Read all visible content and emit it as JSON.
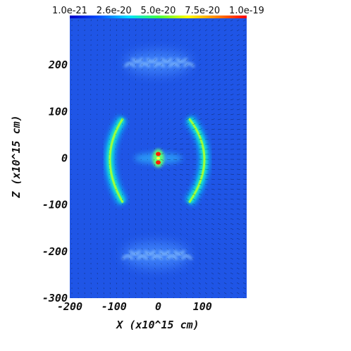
{
  "chart_data": {
    "type": "heatmap",
    "title": "",
    "xlabel": "X (x10^15 cm)",
    "ylabel": "Z (x10^15 cm)",
    "xlim": [
      -200,
      200
    ],
    "ylim": [
      -300,
      300
    ],
    "x_ticks": [
      "-200",
      "-100",
      "0",
      "100"
    ],
    "x_tick_values": [
      -200,
      -100,
      0,
      100
    ],
    "y_ticks": [
      "200",
      "100",
      "0",
      "-100",
      "-200",
      "-300"
    ],
    "y_tick_values": [
      200,
      100,
      0,
      -100,
      -200,
      -300
    ],
    "colorbar": {
      "labels": [
        "1.0e-21",
        "2.6e-20",
        "5.0e-20",
        "7.5e-20",
        "1.0e-19"
      ],
      "values": [
        1e-21,
        2.6e-20,
        5e-20,
        7.5e-20,
        1e-19
      ],
      "colormap": [
        "#0000c8",
        "#0050ff",
        "#00e0ff",
        "#40ff40",
        "#ffff00",
        "#ff8000",
        "#ff0000"
      ],
      "placement": "top"
    },
    "background_color": "#1f55e6",
    "features": [
      {
        "shape": "bright shell arc",
        "side": "left",
        "x_range": [
          -110,
          -80
        ],
        "z_range": [
          -95,
          85
        ],
        "peak_color": "#9aff40"
      },
      {
        "shape": "bright shell arc",
        "side": "right",
        "x_range": [
          70,
          110
        ],
        "z_range": [
          -95,
          85
        ],
        "peak_color": "#9aff40"
      },
      {
        "shape": "central core",
        "x": 0,
        "z": 0,
        "peak_color": "#ff2000"
      },
      {
        "shape": "diffuse lobe",
        "side": "top",
        "x_range": [
          -75,
          75
        ],
        "z_range": [
          180,
          230
        ]
      },
      {
        "shape": "diffuse lobe",
        "side": "bottom",
        "x_range": [
          -80,
          70
        ],
        "z_range": [
          -235,
          -180
        ]
      }
    ],
    "overlay": "velocity vector arrows (black)"
  }
}
